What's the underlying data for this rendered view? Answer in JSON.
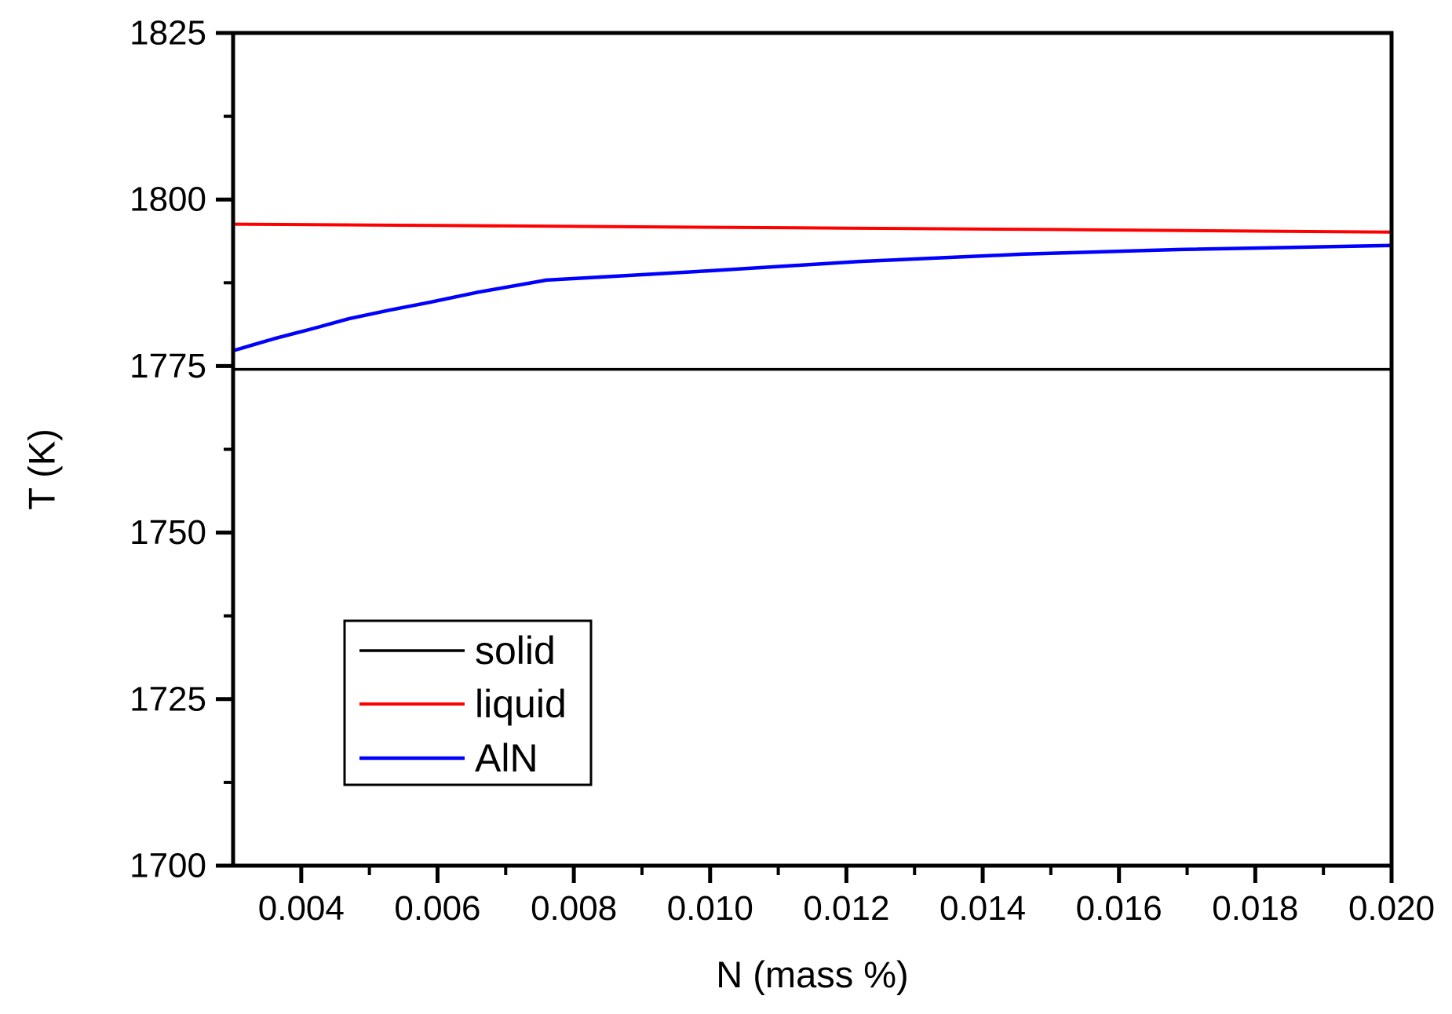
{
  "chart_data": {
    "type": "line",
    "title": "",
    "xlabel": "N (mass %)",
    "ylabel": "T (K)",
    "xlim": [
      0.003,
      0.02
    ],
    "ylim": [
      1700,
      1825
    ],
    "grid": false,
    "background_color": "#ffffff",
    "axis_color": "#000000",
    "x_major_ticks": [
      0.004,
      0.006,
      0.008,
      0.01,
      0.012,
      0.014,
      0.016,
      0.018,
      0.02
    ],
    "x_tick_labels": [
      "0.004",
      "0.006",
      "0.008",
      "0.010",
      "0.012",
      "0.014",
      "0.016",
      "0.018",
      "0.020"
    ],
    "x_minor_ticks": [
      0.005,
      0.007,
      0.009,
      0.011,
      0.013,
      0.015,
      0.017,
      0.019
    ],
    "y_major_ticks": [
      1700,
      1725,
      1750,
      1775,
      1800,
      1825
    ],
    "y_tick_labels": [
      "1700",
      "1725",
      "1750",
      "1775",
      "1800",
      "1825"
    ],
    "y_minor_ticks": [
      1712.5,
      1737.5,
      1762.5,
      1787.5,
      1812.5
    ],
    "legend_position": "inside-lower-left",
    "series": [
      {
        "name": "solid",
        "color": "#000000",
        "width": 3.5,
        "x": [
          0.003,
          0.02
        ],
        "y": [
          1774.5,
          1774.5
        ]
      },
      {
        "name": "liquid",
        "color": "#ff0000",
        "width": 4,
        "x": [
          0.003,
          0.006,
          0.009,
          0.012,
          0.015,
          0.0175,
          0.02
        ],
        "y": [
          1796.3,
          1796.1,
          1795.9,
          1795.7,
          1795.5,
          1795.3,
          1795.1
        ]
      },
      {
        "name": "AlN",
        "color": "#0000ff",
        "width": 4.5,
        "x": [
          0.003,
          0.0033,
          0.0036,
          0.0042,
          0.0047,
          0.0053,
          0.0059,
          0.0066,
          0.0076,
          0.0088,
          0.01,
          0.0122,
          0.0146,
          0.0169,
          0.02
        ],
        "y": [
          1777.3,
          1778.2,
          1779.1,
          1780.7,
          1782.1,
          1783.4,
          1784.6,
          1786.1,
          1787.9,
          1788.6,
          1789.3,
          1790.7,
          1791.8,
          1792.5,
          1793.1
        ]
      }
    ],
    "legend": [
      {
        "label": "solid",
        "color": "#000000"
      },
      {
        "label": "liquid",
        "color": "#ff0000"
      },
      {
        "label": "AlN",
        "color": "#0000ff"
      }
    ]
  }
}
